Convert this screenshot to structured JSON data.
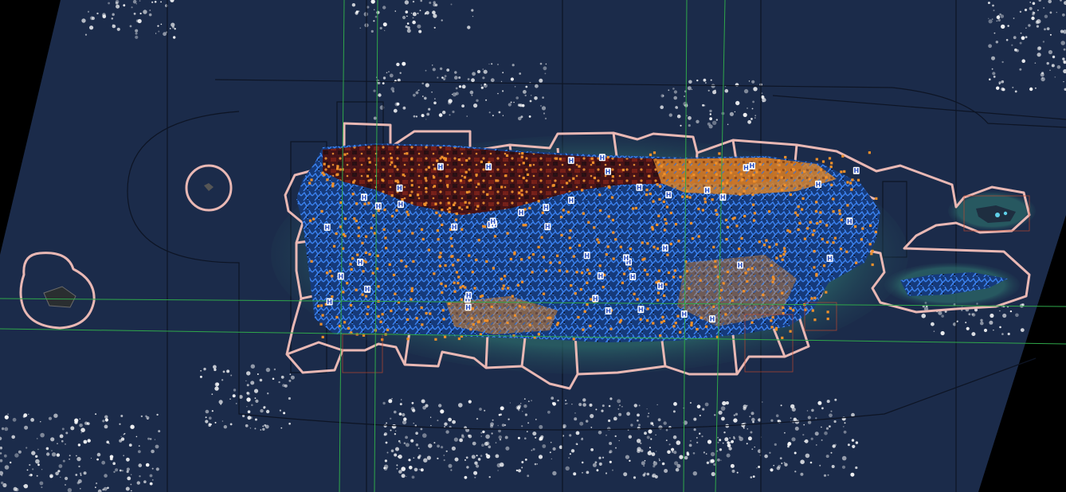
{
  "map": {
    "view": "satellite imagery with GIS overlay layers",
    "region": "Puerto Rico and surrounding islands",
    "colors": {
      "ocean": "#1b2b4a",
      "nodata": "#000000",
      "boundary_outline": "#e9b8b4",
      "graticule": "#2fa84a",
      "grid_lines": "#0d1424",
      "hydro_network": "#2a6fe0",
      "point_features": "#f0902a",
      "terrain_dark_red": "#5a1414",
      "hospital_marker_fill": "#ffffff",
      "hospital_marker_text": "#2a4fbf",
      "cloud": "#ffffff",
      "extent_box": "#c8492a"
    },
    "layers": [
      {
        "name": "basemap-satellite",
        "visible": true
      },
      {
        "name": "municipal-boundaries",
        "visible": true
      },
      {
        "name": "hydrography",
        "visible": true
      },
      {
        "name": "point-facilities",
        "visible": true
      },
      {
        "name": "hospital-markers",
        "visible": true
      },
      {
        "name": "graticule",
        "visible": true
      },
      {
        "name": "tile-grid",
        "visible": true
      }
    ],
    "marker_label": "H",
    "marker_count": 48
  }
}
